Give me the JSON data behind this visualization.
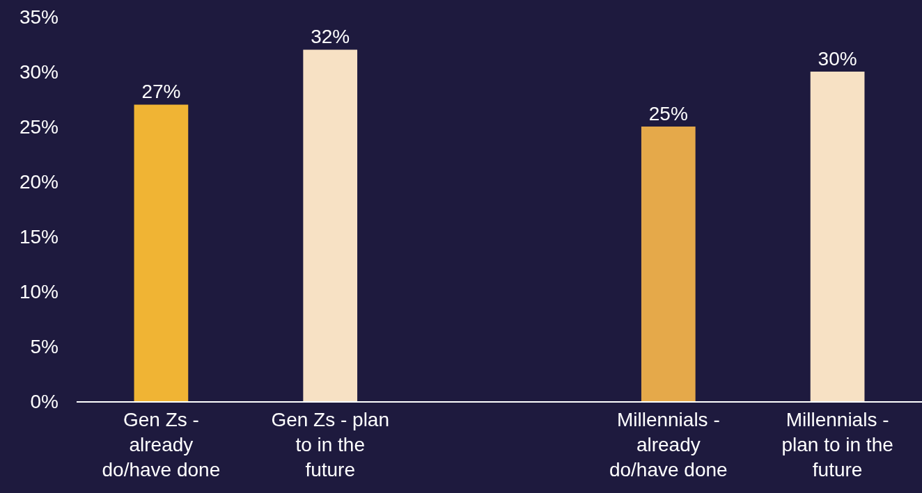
{
  "chart_data": {
    "type": "bar",
    "categories": [
      "Gen Zs - already do/have done",
      "Gen Zs - plan to in the future",
      null,
      "Millennials - already do/have done",
      "Millennials - plan to in the future"
    ],
    "values": [
      27,
      32,
      null,
      25,
      30
    ],
    "colors": [
      "#f0b434",
      "#f7e1c4",
      "#f7e1c4",
      "#e5a94a",
      "#f7e1c4"
    ],
    "value_labels": [
      "27%",
      "32%",
      null,
      "25%",
      "30%"
    ],
    "ylim": [
      0,
      35
    ],
    "yticks": [
      {
        "value": 0,
        "label": "0%"
      },
      {
        "value": 5,
        "label": "5%"
      },
      {
        "value": 10,
        "label": "10%"
      },
      {
        "value": 15,
        "label": "15%"
      },
      {
        "value": 20,
        "label": "20%"
      },
      {
        "value": 25,
        "label": "25%"
      },
      {
        "value": 30,
        "label": "30%"
      },
      {
        "value": 35,
        "label": "35%"
      }
    ],
    "grid": false
  }
}
